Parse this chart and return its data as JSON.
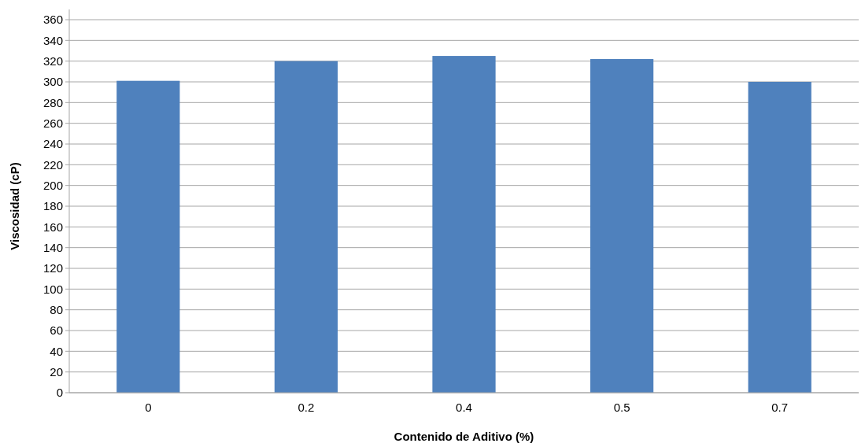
{
  "chart_data": {
    "type": "bar",
    "xlabel": "Contenido de Aditivo (%)",
    "ylabel": "Viscosidad (cP)",
    "categories": [
      "0",
      "0.2",
      "0.4",
      "0.5",
      "0.7"
    ],
    "values": [
      301,
      320,
      325,
      322,
      300
    ],
    "color": "#4f81bd",
    "ylim": [
      0,
      360
    ],
    "yticks": [
      0,
      20,
      40,
      60,
      80,
      100,
      120,
      140,
      160,
      180,
      200,
      220,
      240,
      260,
      280,
      300,
      320,
      340,
      360
    ],
    "grid": "y"
  }
}
